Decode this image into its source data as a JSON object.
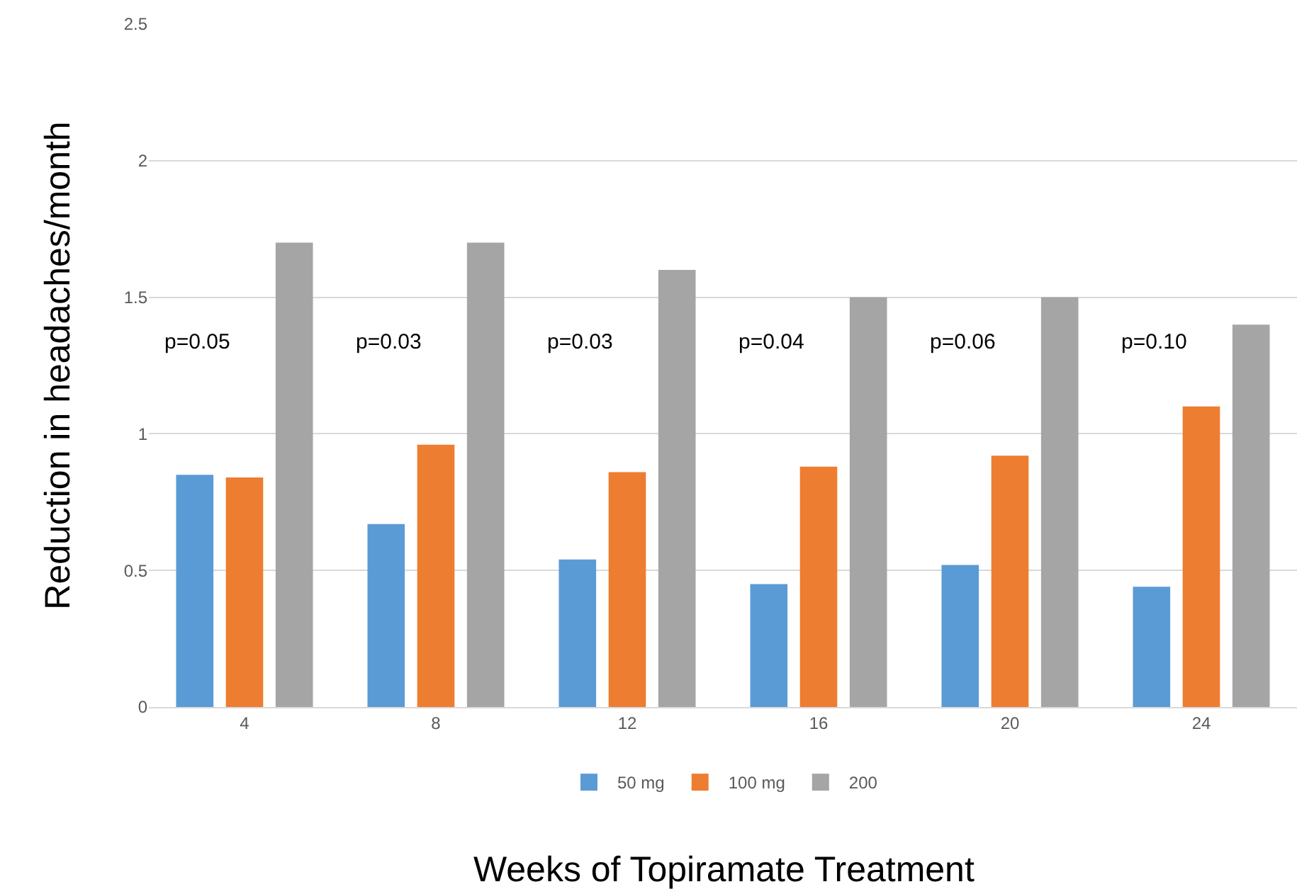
{
  "chart_data": {
    "type": "bar",
    "xlabel": "Weeks of Topiramate Treatment",
    "ylabel": "Reduction in headaches/month",
    "categories": [
      "4",
      "8",
      "12",
      "16",
      "20",
      "24"
    ],
    "series": [
      {
        "name": "50 mg",
        "color": "#5b9bd5",
        "values": [
          0.85,
          0.67,
          0.54,
          0.45,
          0.52,
          0.44
        ]
      },
      {
        "name": "100 mg",
        "color": "#ed7d31",
        "values": [
          0.84,
          0.96,
          0.86,
          0.88,
          0.92,
          1.1
        ]
      },
      {
        "name": "200",
        "color": "#a5a5a5",
        "values": [
          1.7,
          1.7,
          1.6,
          1.5,
          1.5,
          1.4
        ]
      }
    ],
    "ylim": [
      0,
      2.5
    ],
    "yticks": [
      0,
      0.5,
      1,
      1.5,
      2,
      2.5
    ],
    "grid": "y",
    "legend": "bottom",
    "annotations": [
      "p=0.05",
      "p=0.03",
      "p=0.03",
      "p=0.04",
      "p=0.06",
      "p=0.10"
    ]
  }
}
